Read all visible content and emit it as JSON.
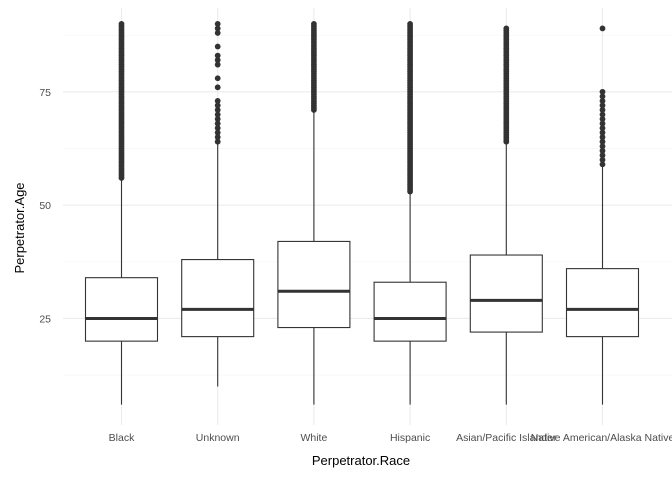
{
  "chart_data": {
    "type": "box",
    "xlabel": "Perpetrator.Race",
    "ylabel": "Perpetrator.Age",
    "ylim": [
      1.5,
      93.5
    ],
    "yticks": [
      25,
      50,
      75
    ],
    "grid": true,
    "categories": [
      "Black",
      "Unknown",
      "White",
      "Hispanic",
      "Asian/Pacific Islander",
      "Native American/Alaska Native"
    ],
    "boxes": [
      {
        "category": "Black",
        "q1": 20,
        "median": 25,
        "q3": 34,
        "whisker_low": 6,
        "whisker_high": 56,
        "outliers_range": [
          56,
          90
        ]
      },
      {
        "category": "Unknown",
        "q1": 21,
        "median": 27,
        "q3": 38,
        "whisker_low": 10,
        "whisker_high": 64,
        "outliers": [
          64,
          65,
          66,
          67,
          68,
          69,
          70,
          71,
          72,
          73,
          76,
          78,
          81,
          82,
          83,
          85,
          88,
          89,
          90
        ]
      },
      {
        "category": "White",
        "q1": 23,
        "median": 31,
        "q3": 42,
        "whisker_low": 6,
        "whisker_high": 71,
        "outliers_range": [
          71,
          90
        ]
      },
      {
        "category": "Hispanic",
        "q1": 20,
        "median": 25,
        "q3": 33,
        "whisker_low": 6,
        "whisker_high": 53,
        "outliers_range": [
          53,
          90
        ]
      },
      {
        "category": "Asian/Pacific Islander",
        "q1": 22,
        "median": 29,
        "q3": 39,
        "whisker_low": 6,
        "whisker_high": 64,
        "outliers_range": [
          64,
          89
        ]
      },
      {
        "category": "Native American/Alaska Native",
        "q1": 21,
        "median": 27,
        "q3": 36,
        "whisker_low": 6,
        "whisker_high": 59,
        "outliers": [
          59,
          60,
          61,
          62,
          63,
          64,
          65,
          66,
          67,
          68,
          69,
          70,
          71,
          72,
          73,
          74,
          75,
          89
        ]
      }
    ]
  }
}
